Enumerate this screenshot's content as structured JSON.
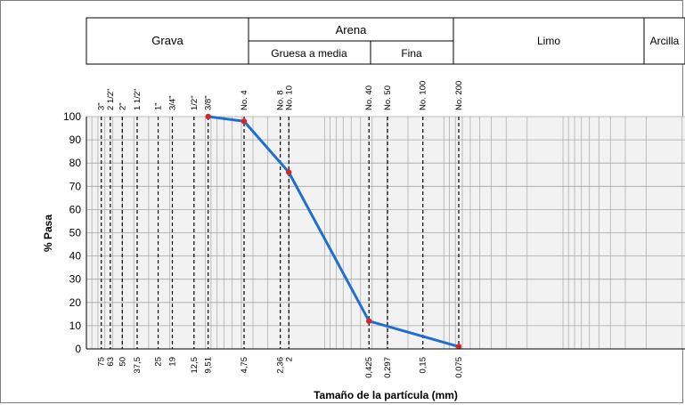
{
  "header": {
    "grava": "Grava",
    "arena": "Arena",
    "gruesa_media": "Gruesa a media",
    "fina": "Fina",
    "limo": "Limo",
    "arcilla": "Arcilla"
  },
  "colors": {
    "curve": "#1f6fd1",
    "points": "#d62728",
    "plot_bg": "#f2f2f2",
    "grid": "#a6a6a6"
  },
  "chart_data": {
    "type": "line",
    "title": "",
    "xlabel": "Tamaño de la partícula (mm)",
    "ylabel": "% Pasa",
    "x_scale": "log",
    "x_reversed": true,
    "xlim": [
      0.001,
      100
    ],
    "ylim": [
      0,
      100
    ],
    "y_ticks": [
      "0",
      "10",
      "20",
      "30",
      "40",
      "50",
      "60",
      "70",
      "80",
      "90",
      "100"
    ],
    "grid": true,
    "sieves": [
      {
        "name": "3\"",
        "size_label": "75",
        "size": 75
      },
      {
        "name": "2 1/2\"",
        "size_label": "63",
        "size": 63
      },
      {
        "name": "2\"",
        "size_label": "50",
        "size": 50
      },
      {
        "name": "1 1/2\"",
        "size_label": "37,5",
        "size": 37.5
      },
      {
        "name": "1\"",
        "size_label": "25",
        "size": 25
      },
      {
        "name": "3/4\"",
        "size_label": "19",
        "size": 19
      },
      {
        "name": "1/2\"",
        "size_label": "12,5",
        "size": 12.5
      },
      {
        "name": "3/8\"",
        "size_label": "9,51",
        "size": 9.51
      },
      {
        "name": "No. 4",
        "size_label": "4,75",
        "size": 4.75
      },
      {
        "name": "No. 8",
        "size_label": "2,36",
        "size": 2.36
      },
      {
        "name": "No. 10",
        "size_label": "2",
        "size": 2
      },
      {
        "name": "No. 40",
        "size_label": "0,425",
        "size": 0.425
      },
      {
        "name": "No. 50",
        "size_label": "0,297",
        "size": 0.297
      },
      {
        "name": "No. 100",
        "size_label": "0,15",
        "size": 0.15
      },
      {
        "name": "No. 200",
        "size_label": "0,075",
        "size": 0.075
      }
    ],
    "series": [
      {
        "x": [
          9.51,
          4.75,
          2,
          0.425,
          0.075
        ],
        "y": [
          100,
          98,
          76,
          12,
          1
        ]
      }
    ]
  }
}
